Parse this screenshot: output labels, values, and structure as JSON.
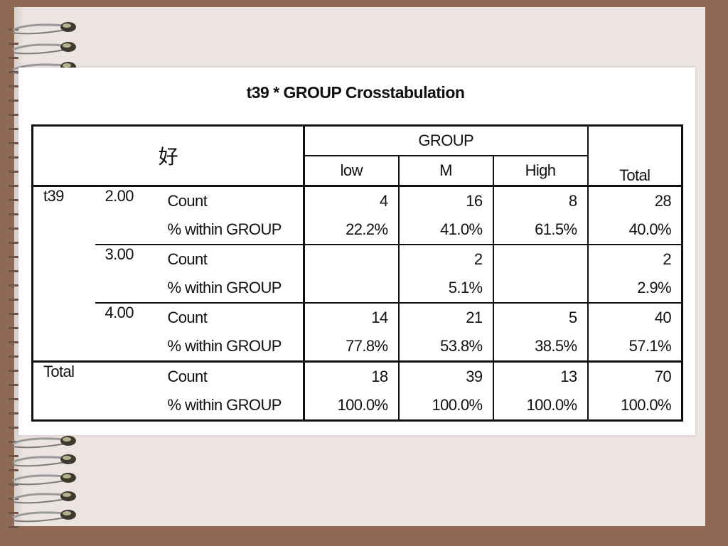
{
  "title": "t39 * GROUP Crosstabulation",
  "corner_label": "好",
  "group_header": "GROUP",
  "columns": [
    "low",
    "M",
    "High",
    "Total"
  ],
  "rows": [
    {
      "var": "t39",
      "level": "2.00",
      "stat1": "Count",
      "stat2": "% within GROUP",
      "counts": [
        "4",
        "16",
        "8",
        "28"
      ],
      "pcts": [
        "22.2%",
        "41.0%",
        "61.5%",
        "40.0%"
      ]
    },
    {
      "var": "",
      "level": "3.00",
      "stat1": "Count",
      "stat2": "% within GROUP",
      "counts": [
        "",
        "2",
        "",
        "2"
      ],
      "pcts": [
        "",
        "5.1%",
        "",
        "2.9%"
      ]
    },
    {
      "var": "",
      "level": "4.00",
      "stat1": "Count",
      "stat2": "% within GROUP",
      "counts": [
        "14",
        "21",
        "5",
        "40"
      ],
      "pcts": [
        "77.8%",
        "53.8%",
        "38.5%",
        "57.1%"
      ]
    },
    {
      "var": "Total",
      "level": "",
      "stat1": "Count",
      "stat2": "% within GROUP",
      "counts": [
        "18",
        "39",
        "13",
        "70"
      ],
      "pcts": [
        "100.0%",
        "100.0%",
        "100.0%",
        "100.0%"
      ]
    }
  ]
}
